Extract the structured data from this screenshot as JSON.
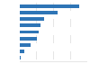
{
  "chart_data": {
    "type": "bar",
    "orientation": "horizontal",
    "categories": [
      null,
      null,
      null,
      null,
      null,
      null,
      null,
      null,
      null
    ],
    "values": [
      5284,
      3398,
      2139,
      1820,
      1650,
      1482,
      957,
      430,
      89
    ],
    "color": "#2e75b6",
    "xlim": [
      0,
      6000
    ],
    "xticks": [
      1500,
      3000,
      4500,
      6000
    ],
    "grid": true,
    "tick_labels": false
  }
}
